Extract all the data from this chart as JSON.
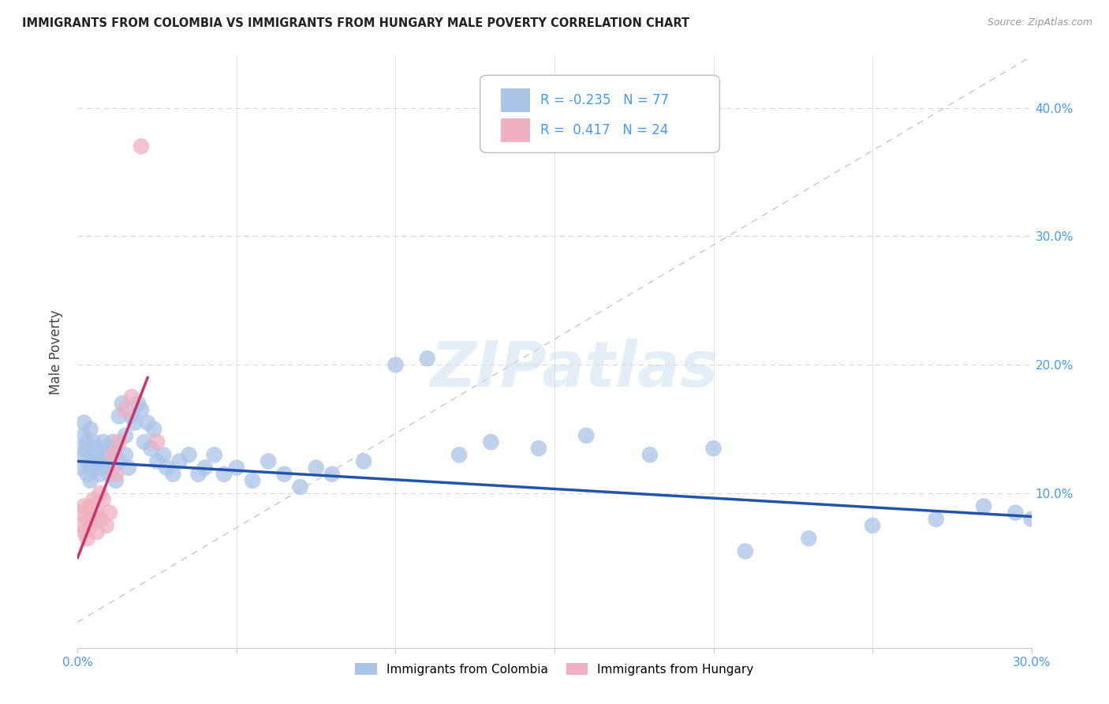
{
  "title": "IMMIGRANTS FROM COLOMBIA VS IMMIGRANTS FROM HUNGARY MALE POVERTY CORRELATION CHART",
  "source": "Source: ZipAtlas.com",
  "ylabel": "Male Poverty",
  "xlim": [
    0.0,
    0.3
  ],
  "ylim": [
    -0.02,
    0.44
  ],
  "colombia_color": "#aac4e8",
  "hungary_color": "#f0b0c0",
  "trend_colombia_color": "#2255aa",
  "trend_hungary_color": "#cc3366",
  "ref_line_color": "#c8c8c8",
  "grid_color": "#d8d8d8",
  "r_colombia": -0.235,
  "n_colombia": 77,
  "r_hungary": 0.417,
  "n_hungary": 24,
  "watermark": "ZIPatlas",
  "background_color": "#ffffff",
  "tick_color": "#4499ff",
  "colombia_x": [
    0.001,
    0.001,
    0.002,
    0.002,
    0.002,
    0.003,
    0.003,
    0.003,
    0.003,
    0.004,
    0.004,
    0.004,
    0.005,
    0.005,
    0.005,
    0.006,
    0.006,
    0.007,
    0.007,
    0.007,
    0.008,
    0.008,
    0.009,
    0.009,
    0.01,
    0.01,
    0.011,
    0.011,
    0.012,
    0.012,
    0.013,
    0.013,
    0.014,
    0.015,
    0.015,
    0.016,
    0.017,
    0.018,
    0.019,
    0.02,
    0.021,
    0.022,
    0.023,
    0.024,
    0.025,
    0.027,
    0.028,
    0.03,
    0.032,
    0.035,
    0.038,
    0.04,
    0.043,
    0.046,
    0.05,
    0.055,
    0.06,
    0.065,
    0.07,
    0.075,
    0.08,
    0.09,
    0.1,
    0.11,
    0.12,
    0.13,
    0.145,
    0.16,
    0.18,
    0.2,
    0.21,
    0.23,
    0.25,
    0.27,
    0.285,
    0.295,
    0.3
  ],
  "colombia_y": [
    0.135,
    0.12,
    0.155,
    0.145,
    0.13,
    0.125,
    0.14,
    0.115,
    0.135,
    0.12,
    0.15,
    0.11,
    0.14,
    0.125,
    0.13,
    0.12,
    0.135,
    0.125,
    0.115,
    0.13,
    0.14,
    0.12,
    0.135,
    0.125,
    0.13,
    0.115,
    0.14,
    0.12,
    0.135,
    0.11,
    0.16,
    0.125,
    0.17,
    0.13,
    0.145,
    0.12,
    0.16,
    0.155,
    0.17,
    0.165,
    0.14,
    0.155,
    0.135,
    0.15,
    0.125,
    0.13,
    0.12,
    0.115,
    0.125,
    0.13,
    0.115,
    0.12,
    0.13,
    0.115,
    0.12,
    0.11,
    0.125,
    0.115,
    0.105,
    0.12,
    0.115,
    0.125,
    0.2,
    0.205,
    0.13,
    0.14,
    0.135,
    0.145,
    0.13,
    0.135,
    0.055,
    0.065,
    0.075,
    0.08,
    0.09,
    0.085,
    0.08
  ],
  "hungary_x": [
    0.001,
    0.001,
    0.002,
    0.002,
    0.003,
    0.003,
    0.004,
    0.004,
    0.005,
    0.005,
    0.006,
    0.006,
    0.007,
    0.007,
    0.008,
    0.009,
    0.01,
    0.011,
    0.012,
    0.013,
    0.015,
    0.017,
    0.02,
    0.025
  ],
  "hungary_y": [
    0.085,
    0.075,
    0.09,
    0.07,
    0.08,
    0.065,
    0.09,
    0.075,
    0.095,
    0.08,
    0.07,
    0.085,
    0.1,
    0.08,
    0.095,
    0.075,
    0.085,
    0.13,
    0.115,
    0.14,
    0.165,
    0.175,
    0.37,
    0.14
  ],
  "legend_r_col": "R = -0.235",
  "legend_n_col": "N = 77",
  "legend_r_hun": "R =  0.417",
  "legend_n_hun": "N = 24"
}
